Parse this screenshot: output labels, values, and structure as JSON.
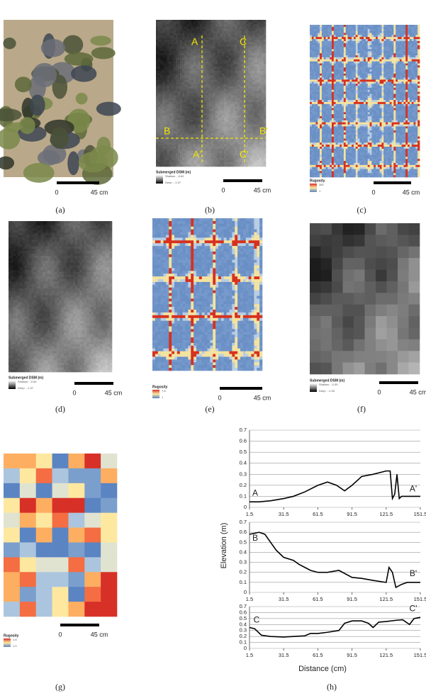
{
  "panels": {
    "a": {
      "label": "(a)",
      "scale_start": "0",
      "scale_end": "45 cm"
    },
    "b": {
      "label": "(b)",
      "scale_start": "0",
      "scale_end": "45 cm",
      "legend_title": "Submerged  DSM (m)",
      "legend_high": "Shallow : -0.60",
      "legend_low": "Deep : -1.07",
      "sections": [
        "A",
        "C",
        "B",
        "B'",
        "A'",
        "C'"
      ]
    },
    "c": {
      "label": "(c)",
      "scale_start": "0",
      "scale_end": "45 cm",
      "legend_title": "Rugosity",
      "legend_high": "282",
      "legend_low": "1"
    },
    "d": {
      "label": "(d)",
      "scale_start": "0",
      "scale_end": "45 cm",
      "legend_title": "Submerged  DSM (m)",
      "legend_high": "Shallow : -0.64",
      "legend_low": "Deep : -1.07"
    },
    "e": {
      "label": "(e)",
      "scale_start": "0",
      "scale_end": "45 cm",
      "legend_title": "Rugosity",
      "legend_high": "7.8",
      "legend_low": "1"
    },
    "f": {
      "label": "(f)",
      "scale_start": "0",
      "scale_end": "45 cm",
      "legend_title": "Submerged  DSM (m)",
      "legend_high": "Shallow : -0.39",
      "legend_low": "Deep : -1.03"
    },
    "g": {
      "label": "(g)",
      "scale_start": "0",
      "scale_end": "45 cm",
      "legend_title": "Rugosity",
      "legend_high": "1.8",
      "legend_low": "1.0"
    },
    "h": {
      "label": "(h)",
      "y_label": "Elevation (m)",
      "x_label": "Distance (cm)"
    }
  },
  "chart_data": [
    {
      "type": "line",
      "annotations": [
        "A",
        "A'"
      ],
      "color": "#000000",
      "x": [
        1.5,
        10,
        20,
        31.5,
        40,
        50,
        61.5,
        70,
        78,
        85,
        91.5,
        100,
        110,
        121.5,
        125,
        127,
        129,
        131,
        133,
        135,
        140,
        151.5
      ],
      "values": [
        0.05,
        0.05,
        0.06,
        0.08,
        0.1,
        0.14,
        0.2,
        0.23,
        0.2,
        0.15,
        0.2,
        0.28,
        0.3,
        0.33,
        0.33,
        0.08,
        0.12,
        0.3,
        0.08,
        0.1,
        0.1,
        0.1
      ],
      "xlim": [
        1.5,
        151.5
      ],
      "xticks": [
        1.5,
        31.5,
        61.5,
        91.5,
        121.5,
        151.5
      ],
      "ylim": [
        0,
        0.7
      ],
      "yticks": [
        0,
        0.1,
        0.2,
        0.3,
        0.4,
        0.5,
        0.6,
        0.7
      ]
    },
    {
      "type": "line",
      "annotations": [
        "B",
        "B'"
      ],
      "color": "#000000",
      "x": [
        1.5,
        10,
        15,
        20,
        25,
        31.5,
        40,
        45,
        50,
        55,
        61.5,
        70,
        80,
        91.5,
        100,
        110,
        121.5,
        124,
        127,
        130,
        135,
        140,
        151.5
      ],
      "values": [
        0.58,
        0.6,
        0.58,
        0.5,
        0.42,
        0.35,
        0.32,
        0.28,
        0.25,
        0.22,
        0.2,
        0.2,
        0.22,
        0.15,
        0.14,
        0.12,
        0.1,
        0.25,
        0.2,
        0.05,
        0.08,
        0.1,
        0.1
      ],
      "xlim": [
        1.5,
        151.5
      ],
      "xticks": [
        1.5,
        31.5,
        61.5,
        91.5,
        121.5,
        151.5
      ],
      "ylim": [
        0,
        0.7
      ],
      "yticks": [
        0,
        0.1,
        0.2,
        0.3,
        0.4,
        0.5,
        0.6,
        0.7
      ]
    },
    {
      "type": "line",
      "annotations": [
        "C",
        "C'"
      ],
      "color": "#000000",
      "x": [
        1.5,
        6,
        12,
        20,
        31.5,
        40,
        50,
        55,
        61.5,
        70,
        80,
        85,
        91.5,
        100,
        106,
        110,
        115,
        121.5,
        130,
        136,
        142,
        146,
        151.5
      ],
      "values": [
        0.35,
        0.33,
        0.22,
        0.2,
        0.19,
        0.2,
        0.21,
        0.25,
        0.25,
        0.27,
        0.3,
        0.42,
        0.46,
        0.46,
        0.42,
        0.35,
        0.44,
        0.45,
        0.47,
        0.48,
        0.4,
        0.5,
        0.52
      ],
      "xlim": [
        1.5,
        151.5
      ],
      "xticks": [
        1.5,
        31.5,
        61.5,
        91.5,
        121.5,
        151.5
      ],
      "ylim": [
        0,
        0.7
      ],
      "yticks": [
        0,
        0.1,
        0.2,
        0.3,
        0.4,
        0.5,
        0.6,
        0.7
      ]
    }
  ]
}
